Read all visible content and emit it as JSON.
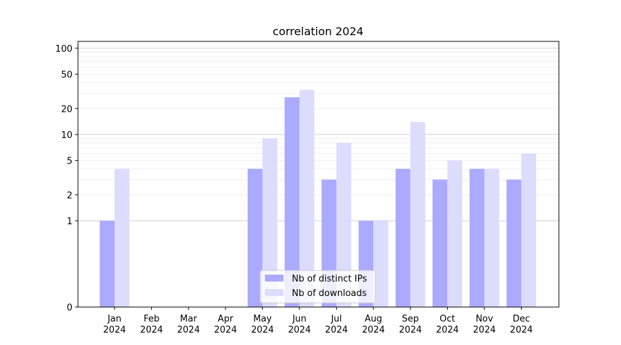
{
  "chart_data": {
    "type": "bar",
    "title": "correlation 2024",
    "xlabel": "",
    "ylabel": "",
    "y_scale": "symlog",
    "ylim": [
      0,
      120
    ],
    "yticks": [
      0,
      1,
      2,
      5,
      10,
      20,
      50,
      100
    ],
    "grid": true,
    "legend_position": "lower center",
    "categories": [
      "Jan\n2024",
      "Feb\n2024",
      "Mar\n2024",
      "Apr\n2024",
      "May\n2024",
      "Jun\n2024",
      "Jul\n2024",
      "Aug\n2024",
      "Sep\n2024",
      "Oct\n2024",
      "Nov\n2024",
      "Dec\n2024"
    ],
    "series": [
      {
        "name": "Nb of distinct IPs",
        "color": "#aaaaff",
        "values": [
          1,
          0,
          0,
          0,
          4,
          27,
          3,
          1,
          4,
          3,
          4,
          3
        ]
      },
      {
        "name": "Nb of downloads",
        "color": "#dcdcfd",
        "values": [
          4,
          0,
          0,
          0,
          9,
          33,
          8,
          1,
          14,
          5,
          4,
          6
        ]
      }
    ]
  }
}
